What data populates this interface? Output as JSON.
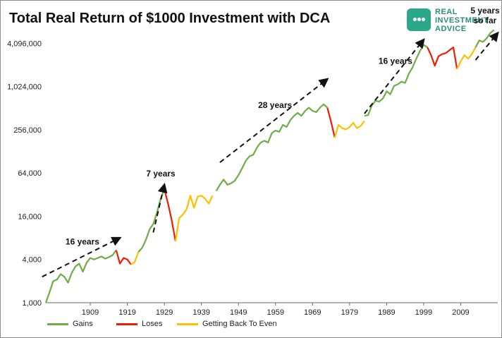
{
  "title": "Total Real Return of $1000 Investment with DCA",
  "logo": {
    "line1": "REAL",
    "line2": "INVESTMENT",
    "line3": "ADVICE",
    "color": "#2aa889"
  },
  "legend": [
    {
      "label": "Gains",
      "color": "#70ad47"
    },
    {
      "label": "Loses",
      "color": "#ee1c00"
    },
    {
      "label": "Getting Back To Even",
      "color": "#ffc000"
    }
  ],
  "annotations": [
    {
      "lines": [
        "16 years"
      ],
      "arrow_from": [
        1896,
        2300
      ],
      "arrow_to": [
        1917,
        8000
      ]
    },
    {
      "lines": [
        "7 years"
      ],
      "arrow_from": [
        1926,
        9500
      ],
      "arrow_to": [
        1929,
        44000
      ]
    },
    {
      "lines": [
        "28 years"
      ],
      "arrow_from": [
        1944,
        90000
      ],
      "arrow_to": [
        1973,
        1300000
      ]
    },
    {
      "lines": [
        "16 years"
      ],
      "arrow_from": [
        1983,
        430000
      ],
      "arrow_to": [
        1999,
        4600000
      ]
    },
    {
      "lines": [
        "5 years",
        "so far"
      ],
      "arrow_from": [
        2013,
        2400000
      ],
      "arrow_to": [
        2019,
        5700000
      ]
    }
  ],
  "chart_data": {
    "type": "line",
    "title": "Total Real Return of $1000 Investment with DCA",
    "xlabel": "",
    "ylabel": "",
    "y_scale": "log",
    "xlim": [
      1897,
      2019
    ],
    "ylim": [
      1000,
      6500000
    ],
    "x_ticks": [
      "1909",
      "1919",
      "1929",
      "1939",
      "1949",
      "1959",
      "1969",
      "1979",
      "1989",
      "1999",
      "2009"
    ],
    "y_ticks": [
      "1,000",
      "4,000",
      "16,000",
      "64,000",
      "256,000",
      "1,024,000",
      "4,096,000"
    ],
    "grid": false,
    "legend_position": "bottom",
    "series": [
      {
        "name": "Gains",
        "color": "#70ad47",
        "x": [
          1897,
          1898,
          1899,
          1900,
          1901,
          1902,
          1903,
          1904,
          1905,
          1906,
          1907,
          1908,
          1909,
          1910,
          1911,
          1912,
          1913,
          1914,
          1915,
          1916
        ],
        "y": [
          1000,
          1400,
          2000,
          2100,
          2500,
          2300,
          1900,
          2600,
          3200,
          3500,
          2700,
          3600,
          4200,
          4000,
          4200,
          4400,
          4100,
          4300,
          4600,
          5400
        ]
      },
      {
        "name": "Loses",
        "color": "#ee1c00",
        "x": [
          1916,
          1917,
          1918,
          1919,
          1920
        ],
        "y": [
          5400,
          3500,
          4200,
          4000,
          3400
        ]
      },
      {
        "name": "Getting Back To Even",
        "color": "#ffc000",
        "x": [
          1920,
          1921,
          1922
        ],
        "y": [
          3400,
          3700,
          5100
        ]
      },
      {
        "name": "Gains",
        "color": "#70ad47",
        "x": [
          1922,
          1923,
          1924,
          1925,
          1926,
          1927,
          1928,
          1929
        ],
        "y": [
          5100,
          5800,
          7500,
          10500,
          12500,
          18000,
          28000,
          38000
        ]
      },
      {
        "name": "Loses",
        "color": "#ee1c00",
        "x": [
          1929,
          1930,
          1931,
          1932
        ],
        "y": [
          38000,
          24000,
          14000,
          7200
        ]
      },
      {
        "name": "Getting Back To Even",
        "color": "#ffc000",
        "x": [
          1932,
          1933,
          1934,
          1935,
          1936,
          1937,
          1938,
          1939,
          1940,
          1941,
          1942
        ],
        "y": [
          7200,
          15000,
          17000,
          20000,
          31000,
          21000,
          30000,
          31000,
          28000,
          24000,
          31000
        ]
      },
      {
        "name": "Gains",
        "color": "#70ad47",
        "x": [
          1943,
          1944,
          1945,
          1946,
          1947,
          1948,
          1949,
          1950,
          1951,
          1952,
          1953,
          1954,
          1955,
          1956,
          1957,
          1958,
          1959,
          1960,
          1961,
          1962,
          1963,
          1964,
          1965,
          1966,
          1967,
          1968,
          1969,
          1970,
          1971,
          1972,
          1973
        ],
        "y": [
          36000,
          44000,
          52000,
          44000,
          46000,
          50000,
          60000,
          75000,
          95000,
          110000,
          115000,
          145000,
          170000,
          180000,
          170000,
          230000,
          250000,
          240000,
          300000,
          280000,
          350000,
          400000,
          440000,
          400000,
          470000,
          520000,
          470000,
          450000,
          520000,
          580000,
          520000
        ]
      },
      {
        "name": "Loses",
        "color": "#ee1c00",
        "x": [
          1973,
          1974,
          1975
        ],
        "y": [
          520000,
          330000,
          200000
        ]
      },
      {
        "name": "Getting Back To Even",
        "color": "#ffc000",
        "x": [
          1975,
          1976,
          1977,
          1978,
          1979,
          1980,
          1981,
          1982,
          1983
        ],
        "y": [
          200000,
          300000,
          270000,
          260000,
          280000,
          320000,
          270000,
          290000,
          340000
        ]
      },
      {
        "name": "Gains",
        "color": "#70ad47",
        "x": [
          1983,
          1984,
          1985,
          1986,
          1987,
          1988,
          1989,
          1990,
          1991,
          1992,
          1993,
          1994,
          1995,
          1996,
          1997,
          1998,
          1999,
          2000
        ],
        "y": [
          400000,
          410000,
          560000,
          650000,
          630000,
          700000,
          880000,
          800000,
          1050000,
          1100000,
          1200000,
          1150000,
          1550000,
          1900000,
          2500000,
          3200000,
          3900000,
          3600000
        ]
      },
      {
        "name": "Loses",
        "color": "#ee1c00",
        "x": [
          2000,
          2001,
          2002,
          2003,
          2004,
          2005,
          2006,
          2007,
          2008
        ],
        "y": [
          3600000,
          2800000,
          2000000,
          2700000,
          2900000,
          3000000,
          3300000,
          3600000,
          1800000
        ]
      },
      {
        "name": "Getting Back To Even",
        "color": "#ffc000",
        "x": [
          2008,
          2009,
          2010,
          2011,
          2012,
          2013
        ],
        "y": [
          1800000,
          2300000,
          2800000,
          2500000,
          2900000,
          3600000
        ]
      },
      {
        "name": "Gains",
        "color": "#70ad47",
        "x": [
          2013,
          2014,
          2015,
          2016,
          2017,
          2018
        ],
        "y": [
          3600000,
          4500000,
          4300000,
          4800000,
          5700000,
          6300000
        ]
      }
    ]
  }
}
